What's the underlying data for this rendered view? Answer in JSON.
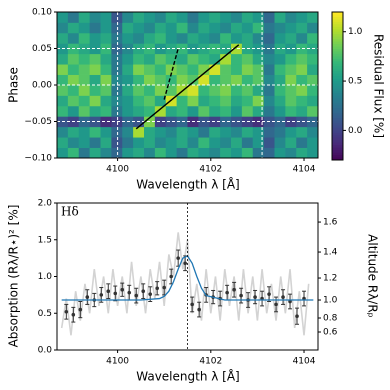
{
  "chart_data": [
    {
      "type": "heatmap",
      "xlabel": "Wavelength λ [Å]",
      "ylabel": "Phase",
      "colorbar_label": "Residual Flux [%]",
      "cmap": "viridis",
      "xlim": [
        4098.7,
        4104.3
      ],
      "xticks": [
        4100,
        4102,
        4104
      ],
      "ylim": [
        -0.1,
        0.1
      ],
      "yticks": [
        {
          "value": -0.1,
          "label": "−0.10"
        },
        {
          "value": -0.05,
          "label": "−0.05"
        },
        {
          "value": 0,
          "label": "0.00"
        },
        {
          "value": 0.05,
          "label": "0.05"
        },
        {
          "value": 0.1,
          "label": "0.10"
        }
      ],
      "clim": [
        -0.3,
        1.2
      ],
      "cticks": [
        {
          "value": 0,
          "label": "0.0"
        },
        {
          "value": 0.5,
          "label": "0.5"
        },
        {
          "value": 1,
          "label": "1.0"
        }
      ],
      "vlines": [
        4100,
        4103.1
      ],
      "grid": true,
      "lines": [
        {
          "style": "solid",
          "x": [
            4100.4,
            4102.6
          ],
          "y": [
            -0.06,
            0.055
          ]
        },
        {
          "style": "dashed",
          "x": [
            4101.0,
            4101.3
          ],
          "y": [
            -0.02,
            0.05
          ]
        }
      ],
      "values": [
        [
          0.5,
          0.7,
          0.3,
          0.6,
          0.4,
          0.2,
          0.5,
          0.6,
          0.4,
          0.7,
          0.5,
          0.3,
          0.6,
          0.5,
          0.4,
          0.6,
          0.5,
          0.7,
          0.3,
          0.2,
          0.5,
          0.4,
          0.6,
          0.5
        ],
        [
          0.6,
          0.4,
          0.5,
          0.3,
          0.6,
          0.1,
          0.3,
          0.5,
          0.6,
          0.4,
          0.5,
          0.6,
          0.4,
          0.7,
          0.5,
          0.4,
          0.6,
          0.3,
          0.5,
          0.1,
          0.4,
          0.6,
          0.3,
          0.5
        ],
        [
          0.4,
          0.6,
          0.5,
          0.7,
          0.5,
          0.2,
          0.4,
          1.0,
          0.6,
          0.5,
          0.4,
          0.6,
          0.5,
          0.3,
          0.6,
          0.5,
          0.4,
          0.6,
          0.5,
          0.2,
          0.3,
          0.5,
          0.6,
          0.4
        ],
        [
          0.1,
          0.0,
          0.2,
          0.1,
          -0.1,
          0.0,
          0.2,
          0.1,
          0.9,
          0.0,
          0.1,
          0.2,
          -0.1,
          0.1,
          0.0,
          0.2,
          0.1,
          0.0,
          -0.1,
          0.1,
          0.2,
          0.0,
          0.1,
          0.2
        ],
        [
          0.7,
          0.5,
          0.8,
          0.6,
          0.7,
          0.3,
          0.5,
          0.6,
          0.7,
          1.0,
          0.6,
          0.7,
          0.5,
          0.8,
          0.6,
          0.7,
          0.5,
          0.8,
          0.6,
          0.3,
          0.5,
          0.7,
          0.6,
          0.8
        ],
        [
          0.6,
          0.8,
          0.7,
          0.9,
          0.6,
          0.4,
          0.5,
          0.7,
          0.8,
          0.6,
          1.1,
          0.7,
          0.9,
          0.6,
          0.7,
          0.8,
          0.6,
          0.7,
          0.9,
          0.4,
          0.6,
          0.8,
          0.7,
          0.6
        ],
        [
          0.8,
          0.7,
          0.9,
          0.7,
          0.8,
          0.3,
          0.6,
          0.8,
          0.7,
          0.9,
          0.8,
          1.0,
          1.1,
          0.7,
          0.8,
          0.9,
          0.7,
          0.8,
          0.6,
          0.3,
          0.7,
          0.8,
          0.9,
          0.7
        ],
        [
          0.7,
          0.9,
          0.8,
          0.6,
          0.9,
          0.4,
          0.5,
          0.7,
          0.9,
          0.8,
          0.7,
          0.9,
          0.8,
          1.1,
          0.7,
          0.8,
          0.9,
          0.7,
          0.8,
          0.4,
          0.6,
          0.9,
          0.7,
          0.8
        ],
        [
          0.9,
          0.7,
          0.8,
          0.9,
          0.7,
          0.3,
          0.6,
          0.9,
          0.8,
          0.7,
          0.9,
          0.8,
          0.7,
          0.9,
          1.1,
          0.8,
          0.7,
          0.9,
          0.8,
          0.3,
          0.7,
          0.8,
          0.9,
          0.6
        ],
        [
          0.6,
          0.8,
          0.7,
          0.8,
          0.6,
          0.3,
          0.5,
          0.7,
          0.6,
          0.8,
          0.7,
          0.6,
          0.8,
          0.7,
          0.6,
          1.0,
          0.7,
          0.8,
          0.6,
          0.4,
          0.5,
          0.7,
          0.8,
          0.7
        ],
        [
          0.5,
          0.7,
          0.6,
          0.5,
          0.7,
          0.2,
          0.4,
          0.6,
          0.7,
          0.5,
          0.6,
          0.7,
          0.5,
          0.6,
          0.7,
          0.6,
          1.0,
          0.6,
          0.5,
          0.3,
          0.6,
          0.5,
          0.7,
          0.6
        ],
        [
          0.6,
          0.4,
          0.7,
          0.5,
          0.6,
          0.3,
          0.5,
          0.4,
          0.6,
          0.7,
          0.5,
          0.4,
          0.6,
          0.5,
          0.4,
          0.7,
          0.5,
          0.6,
          0.4,
          0.2,
          0.5,
          0.6,
          0.4,
          0.7
        ],
        [
          0.4,
          0.6,
          0.5,
          0.3,
          0.5,
          0.2,
          0.6,
          0.5,
          0.4,
          0.6,
          0.5,
          0.7,
          0.4,
          0.6,
          0.5,
          0.4,
          0.6,
          0.5,
          0.7,
          0.3,
          0.4,
          0.5,
          0.6,
          0.4
        ],
        [
          0.5,
          0.3,
          0.6,
          0.4,
          0.5,
          0.1,
          0.4,
          0.6,
          0.5,
          0.4,
          0.6,
          0.5,
          0.3,
          0.5,
          0.6,
          0.5,
          0.4,
          0.6,
          0.5,
          0.2,
          0.6,
          0.4,
          0.5,
          0.6
        ]
      ]
    },
    {
      "type": "line",
      "annotation": "Hδ",
      "xlabel": "Wavelength λ [Å]",
      "ylabel": "Absorption (Rλ/R⋆)² [%]",
      "y2label": "Altitude Rλ/Rₚ",
      "xlim": [
        4098.7,
        4104.3
      ],
      "xticks": [
        4100,
        4102,
        4104
      ],
      "ylim": [
        0,
        2
      ],
      "yticks": [
        {
          "value": 0,
          "label": "0.0"
        },
        {
          "value": 0.5,
          "label": "0.5"
        },
        {
          "value": 1,
          "label": "1.0"
        },
        {
          "value": 1.5,
          "label": "1.5"
        },
        {
          "value": 2,
          "label": "2.0"
        }
      ],
      "y2_scale": "quadratic",
      "y2lim": [
        0,
        1.715
      ],
      "y2ticks": [
        {
          "value": 0.6,
          "label": "0.6"
        },
        {
          "value": 0.8,
          "label": "0.8"
        },
        {
          "value": 1,
          "label": "1.0"
        },
        {
          "value": 1.2,
          "label": "1.2"
        },
        {
          "value": 1.4,
          "label": "1.4"
        },
        {
          "value": 1.6,
          "label": "1.6"
        }
      ],
      "vline": 4101.5,
      "series": [
        {
          "kind": "raw",
          "color": "#d3d3d3",
          "x": [
            4098.8,
            4098.9,
            4099.0,
            4099.1,
            4099.2,
            4099.3,
            4099.4,
            4099.5,
            4099.6,
            4099.7,
            4099.8,
            4099.9,
            4100.0,
            4100.1,
            4100.2,
            4100.3,
            4100.4,
            4100.5,
            4100.6,
            4100.7,
            4100.8,
            4100.9,
            4101.0,
            4101.1,
            4101.2,
            4101.3,
            4101.4,
            4101.5,
            4101.6,
            4101.7,
            4101.8,
            4101.9,
            4102.0,
            4102.1,
            4102.2,
            4102.3,
            4102.4,
            4102.5,
            4102.6,
            4102.7,
            4102.8,
            4102.9,
            4103.0,
            4103.1,
            4103.2,
            4103.3,
            4103.4,
            4103.5,
            4103.6,
            4103.7,
            4103.8,
            4103.9,
            4104.0,
            4104.1
          ],
          "values": [
            0.3,
            0.7,
            0.2,
            0.8,
            0.4,
            0.9,
            0.5,
            1.1,
            0.6,
            1.0,
            0.5,
            1.1,
            0.6,
            1.0,
            0.5,
            1.2,
            0.6,
            1.0,
            0.5,
            1.1,
            0.7,
            1.2,
            0.6,
            1.3,
            1.0,
            1.6,
            1.1,
            1.5,
            0.5,
            0.9,
            0.4,
            1.1,
            0.5,
            1.0,
            0.4,
            1.1,
            0.6,
            1.0,
            0.4,
            1.1,
            0.5,
            1.0,
            0.4,
            1.1,
            0.5,
            0.9,
            0.4,
            1.0,
            0.5,
            1.1,
            0.3,
            0.8,
            0.2,
            0.9
          ]
        },
        {
          "kind": "binned",
          "color": "#333333",
          "x": [
            4098.9,
            4099.05,
            4099.2,
            4099.35,
            4099.5,
            4099.65,
            4099.8,
            4099.95,
            4100.1,
            4100.25,
            4100.4,
            4100.55,
            4100.7,
            4100.85,
            4101.0,
            4101.15,
            4101.3,
            4101.45,
            4101.6,
            4101.75,
            4101.9,
            4102.05,
            4102.2,
            4102.35,
            4102.5,
            4102.65,
            4102.8,
            4102.95,
            4103.1,
            4103.25,
            4103.4,
            4103.55,
            4103.7,
            4103.85,
            4104.0
          ],
          "values": [
            0.52,
            0.48,
            0.55,
            0.72,
            0.68,
            0.75,
            0.8,
            0.77,
            0.82,
            0.78,
            0.74,
            0.8,
            0.76,
            0.84,
            0.85,
            1.0,
            1.25,
            1.18,
            0.62,
            0.55,
            0.75,
            0.72,
            0.7,
            0.78,
            0.82,
            0.74,
            0.68,
            0.72,
            0.7,
            0.76,
            0.62,
            0.72,
            0.66,
            0.46,
            0.7
          ],
          "errors": [
            0.1,
            0.1,
            0.11,
            0.1,
            0.09,
            0.1,
            0.1,
            0.1,
            0.09,
            0.1,
            0.1,
            0.1,
            0.1,
            0.09,
            0.1,
            0.1,
            0.11,
            0.1,
            0.1,
            0.1,
            0.1,
            0.09,
            0.1,
            0.1,
            0.1,
            0.1,
            0.1,
            0.09,
            0.1,
            0.1,
            0.1,
            0.1,
            0.1,
            0.11,
            0.1
          ]
        },
        {
          "kind": "model",
          "color": "#1f77b4",
          "x": [
            4098.8,
            4100.5,
            4100.9,
            4101.0,
            4101.1,
            4101.2,
            4101.3,
            4101.4,
            4101.5,
            4101.6,
            4101.7,
            4101.8,
            4101.9,
            4102.3,
            4104.2
          ],
          "values": [
            0.68,
            0.68,
            0.7,
            0.73,
            0.8,
            0.93,
            1.1,
            1.25,
            1.28,
            1.18,
            1.0,
            0.84,
            0.74,
            0.68,
            0.68
          ]
        }
      ]
    }
  ]
}
